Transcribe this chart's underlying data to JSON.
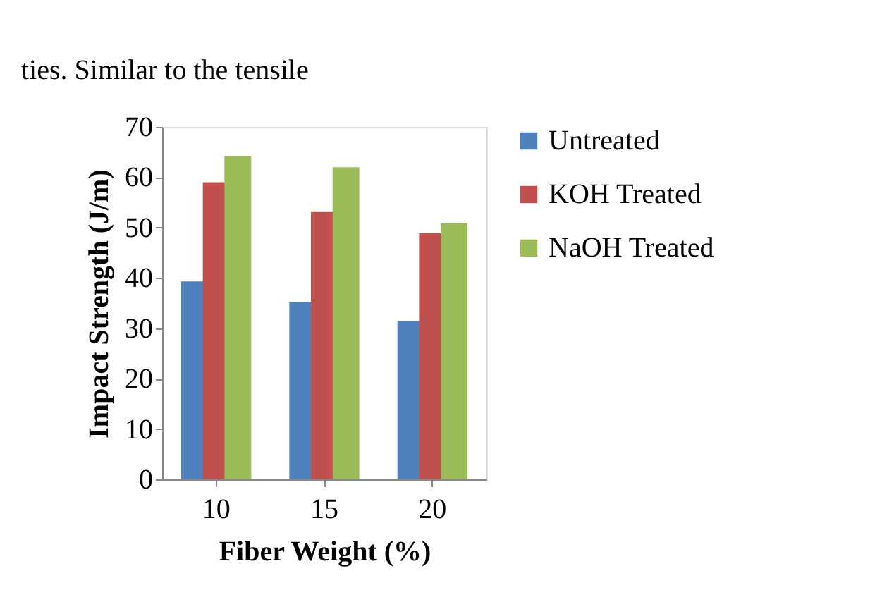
{
  "chart_data": {
    "type": "bar",
    "xlabel": "Fiber Weight (%)",
    "ylabel": "Impact Strength (J/m)",
    "annotations": [
      "ties. Similar to the tensile"
    ],
    "categories": [
      "10",
      "15",
      "20"
    ],
    "series": [
      {
        "name": "Untreated",
        "color": "#4f81bd",
        "values": [
          39.3,
          35.2,
          31.4
        ]
      },
      {
        "name": "KOH Treated",
        "color": "#c0504d",
        "values": [
          59.0,
          53.1,
          48.9
        ]
      },
      {
        "name": "NaOH Treated",
        "color": "#9bbb59",
        "values": [
          64.2,
          62.0,
          50.9
        ]
      }
    ],
    "ylim": [
      0,
      70
    ],
    "yticks": [
      0,
      10,
      20,
      30,
      40,
      50,
      60,
      70
    ],
    "grid": false,
    "legend": "right"
  }
}
